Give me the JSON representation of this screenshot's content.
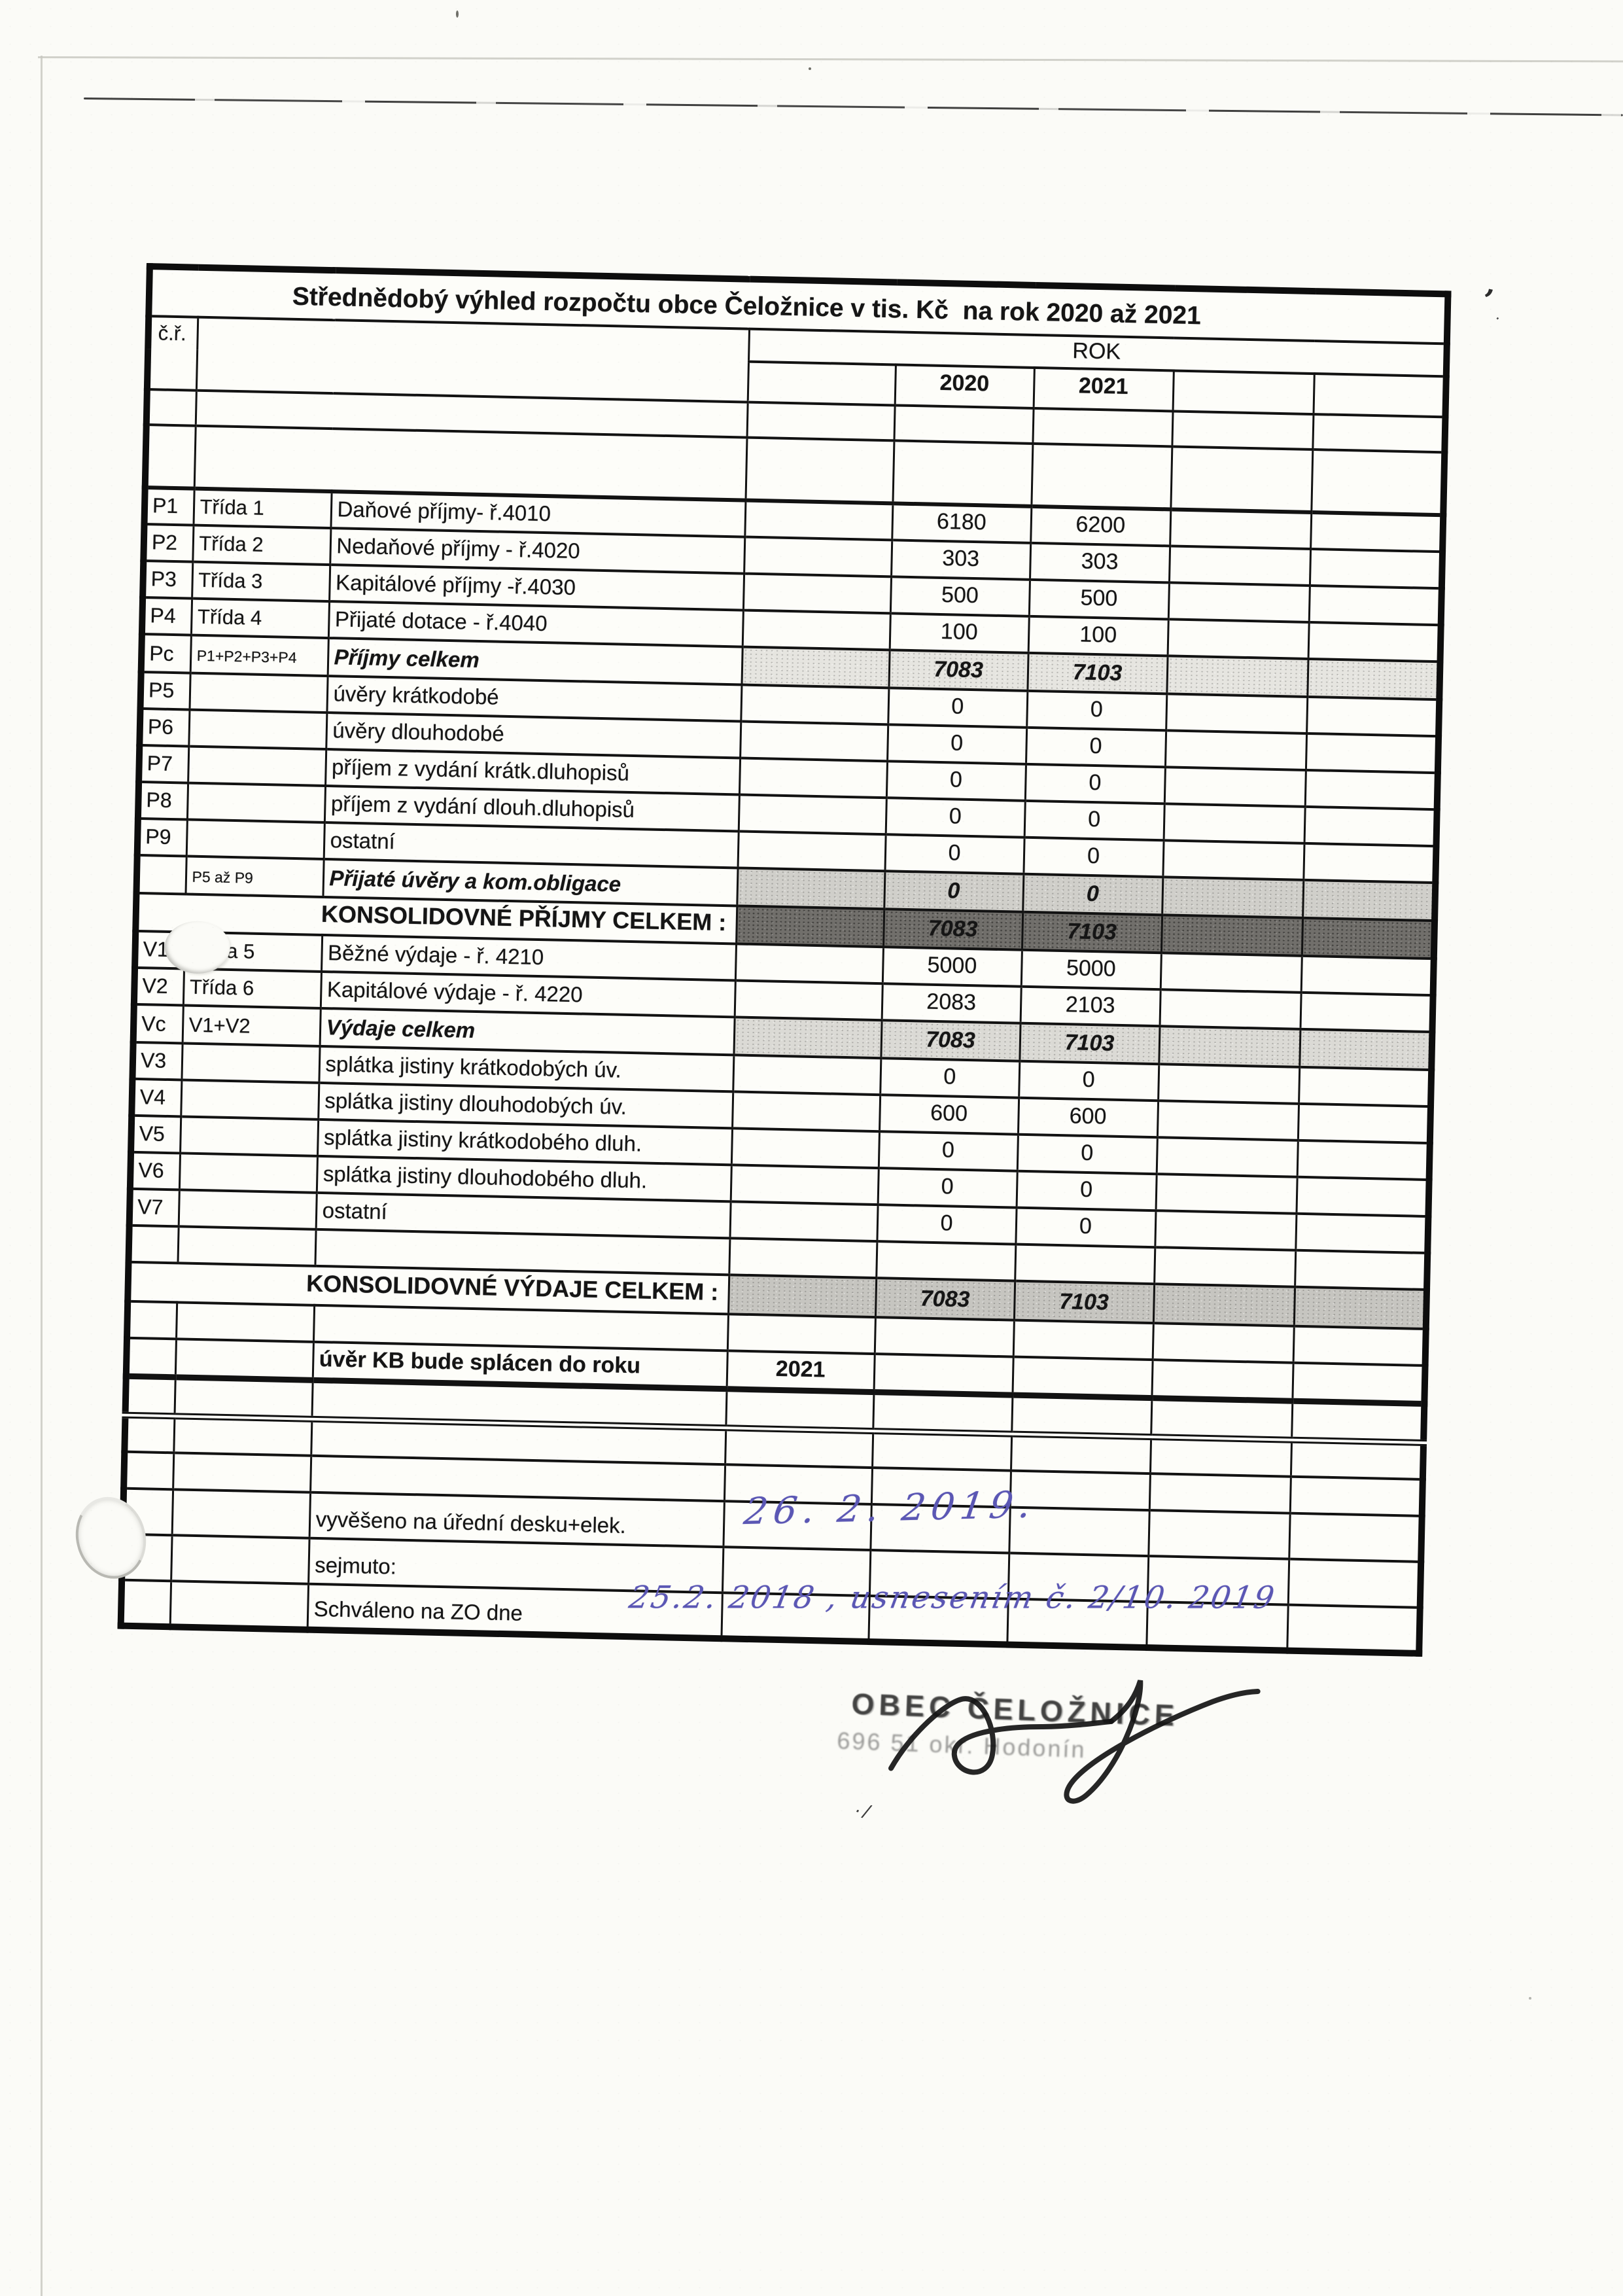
{
  "table": {
    "title": "Střednědobý výhled rozpočtu obce Čeložnice v tis. Kč  na rok 2020 až 2021",
    "corner_label": "č.ř.",
    "year_group_label": "ROK",
    "year_columns": [
      "2020",
      "2021"
    ],
    "rows": [
      {
        "kind": "data",
        "code": "P1",
        "group": "Třída 1",
        "label": "Daňové příjmy- ř.4010",
        "y2020": "6180",
        "y2021": "6200"
      },
      {
        "kind": "data",
        "code": "P2",
        "group": "Třída 2",
        "label": "Nedaňové příjmy - ř.4020",
        "y2020": "303",
        "y2021": "303"
      },
      {
        "kind": "data",
        "code": "P3",
        "group": "Třída 3",
        "label": "Kapitálové příjmy -ř.4030",
        "y2020": "500",
        "y2021": "500"
      },
      {
        "kind": "data",
        "code": "P4",
        "group": "Třída 4",
        "label": "Přijaté dotace - ř.4040",
        "y2020": "100",
        "y2021": "100"
      },
      {
        "kind": "subtotal",
        "tone": "1",
        "code": "Pc",
        "group": "P1+P2+P3+P4",
        "small_group": true,
        "label": "Příjmy celkem",
        "y2020": "7083",
        "y2021": "7103"
      },
      {
        "kind": "data",
        "code": "P5",
        "group": "",
        "label": "úvěry krátkodobé",
        "y2020": "0",
        "y2021": "0"
      },
      {
        "kind": "data",
        "code": "P6",
        "group": "",
        "label": "úvěry dlouhodobé",
        "y2020": "0",
        "y2021": "0"
      },
      {
        "kind": "data",
        "code": "P7",
        "group": "",
        "label": "příjem z vydání krátk.dluhopisů",
        "y2020": "0",
        "y2021": "0"
      },
      {
        "kind": "data",
        "code": "P8",
        "group": "",
        "label": "příjem z vydání dlouh.dluhopisů",
        "y2020": "0",
        "y2021": "0"
      },
      {
        "kind": "data",
        "code": "P9",
        "group": "",
        "label": "ostatní",
        "y2020": "0",
        "y2021": "0"
      },
      {
        "kind": "subtotal",
        "tone": "2",
        "code": "",
        "group": "P5 až P9",
        "small_group": true,
        "label": "Přijaté úvěry a kom.obligace",
        "y2020": "0",
        "y2021": "0"
      },
      {
        "kind": "total-dark",
        "label": "KONSOLIDOVNÉ PŘÍJMY CELKEM :",
        "y2020": "7083",
        "y2021": "7103"
      },
      {
        "kind": "data",
        "code": "V1",
        "group": "Třída 5",
        "label": "Běžné výdaje - ř. 4210",
        "y2020": "5000",
        "y2021": "5000"
      },
      {
        "kind": "data",
        "code": "V2",
        "group": "Třída 6",
        "label": "Kapitálové výdaje - ř. 4220",
        "y2020": "2083",
        "y2021": "2103"
      },
      {
        "kind": "subtotal",
        "tone": "3",
        "code": "Vc",
        "group": "V1+V2",
        "label": "Výdaje celkem",
        "y2020": "7083",
        "y2021": "7103"
      },
      {
        "kind": "data",
        "code": "V3",
        "group": "",
        "label": "splátka jistiny krátkodobých úv.",
        "y2020": "0",
        "y2021": "0"
      },
      {
        "kind": "data",
        "code": "V4",
        "group": "",
        "label": "splátka jistiny dlouhodobých úv.",
        "y2020": "600",
        "y2021": "600"
      },
      {
        "kind": "data",
        "code": "V5",
        "group": "",
        "label": "splátka jistiny krátkodobého dluh.",
        "y2020": "0",
        "y2021": "0"
      },
      {
        "kind": "data",
        "code": "V6",
        "group": "",
        "label": "splátka jistiny dlouhodobého dluh.",
        "y2020": "0",
        "y2021": "0"
      },
      {
        "kind": "data",
        "code": "V7",
        "group": "",
        "label": "ostatní",
        "y2020": "0",
        "y2021": "0"
      },
      {
        "kind": "blank"
      },
      {
        "kind": "total-mid",
        "label": "KONSOLIDOVNÉ VÝDAJE CELKEM :",
        "y2020": "7083",
        "y2021": "7103"
      },
      {
        "kind": "blank"
      },
      {
        "kind": "note-strong",
        "label": "úvěr KB bude splácen do roku",
        "value4": "2021"
      },
      {
        "kind": "blank-dbl"
      },
      {
        "kind": "blank"
      },
      {
        "kind": "blank"
      },
      {
        "kind": "note",
        "label": "vyvěšeno na úřední desku+elek."
      },
      {
        "kind": "note",
        "label": "sejmuto:"
      },
      {
        "kind": "note",
        "label": "Schváleno na ZO dne"
      }
    ]
  },
  "handwriting": {
    "posted_date": "26. 2. 2019.",
    "approved_note": "25.2. 2018 , usnesením č. 2/10. 2019"
  },
  "stamp": {
    "line1": "OBEC ČELOŽNICE",
    "line2": "696 51 okr. Hodonín"
  },
  "artifacts": {
    "apostrophe": "’",
    "tick": "·",
    "pen_mark": "·/"
  }
}
